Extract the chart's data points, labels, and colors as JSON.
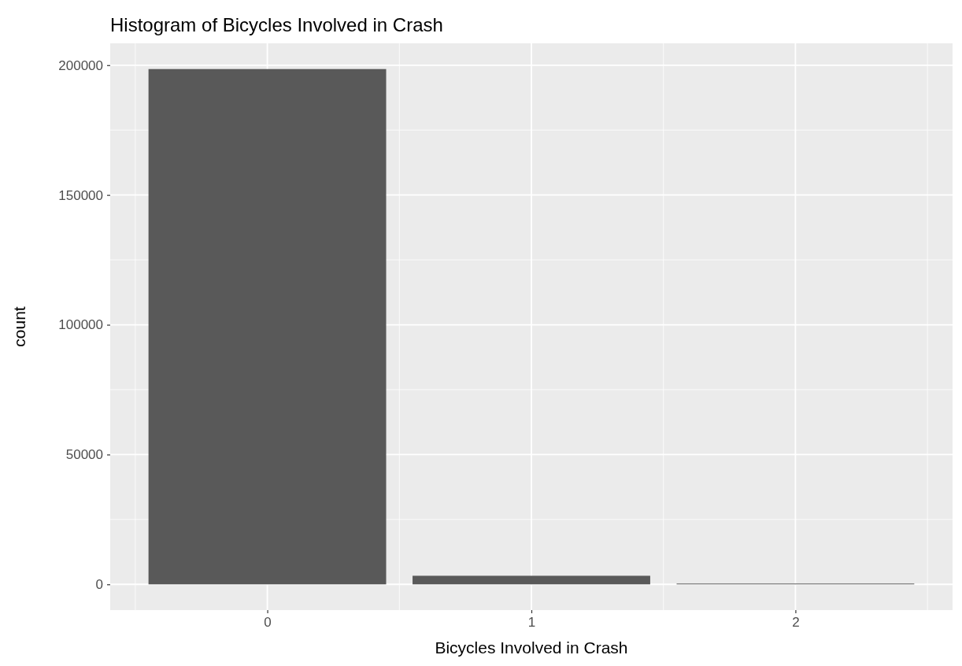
{
  "chart_data": {
    "type": "bar",
    "title": "Histogram of Bicycles Involved in Crash",
    "xlabel": "Bicycles Involved in Crash",
    "ylabel": "count",
    "x": [
      0,
      1,
      2
    ],
    "values": [
      198500,
      3300,
      300
    ],
    "color": "#595959",
    "xlim": [
      -0.595,
      2.595
    ],
    "xticks": [
      0,
      1,
      2
    ],
    "ylim": [
      -9925,
      208425
    ],
    "yticks": [
      0,
      50000,
      100000,
      150000,
      200000
    ],
    "grid": true
  }
}
